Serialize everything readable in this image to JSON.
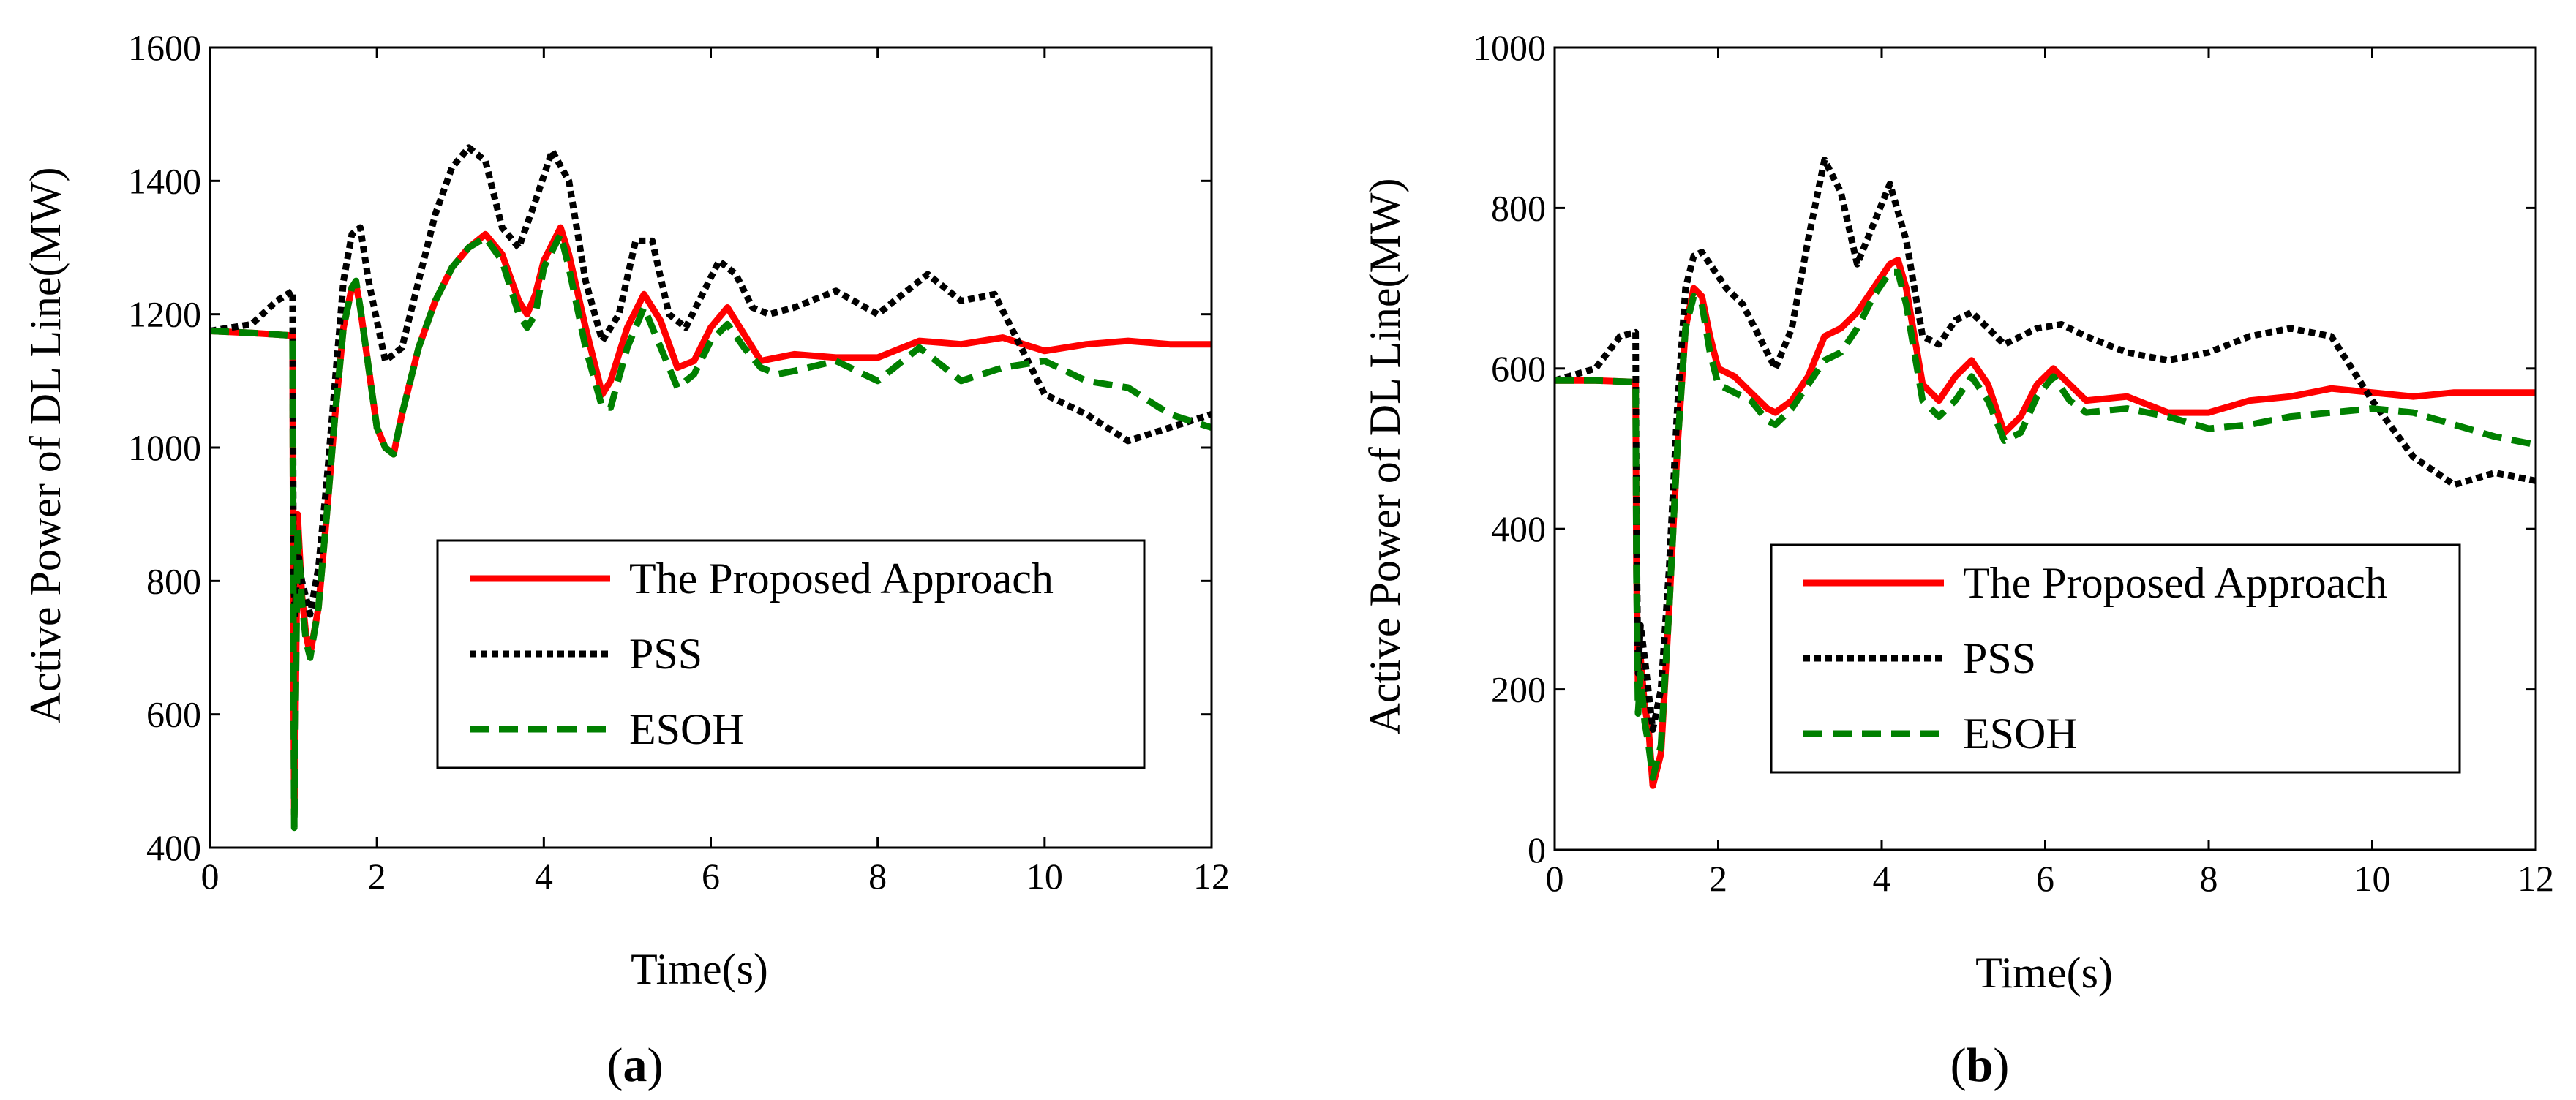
{
  "colors": {
    "proposed": "#ff0000",
    "pss": "#000000",
    "esoh": "#008000",
    "axis": "#000000",
    "background": "#ffffff"
  },
  "chart_data": [
    {
      "type": "line",
      "panel_label": "a",
      "xlabel": "Time(s)",
      "ylabel": "Active Power of DL  Line(MW)",
      "xlim": [
        0,
        12
      ],
      "ylim": [
        400,
        1600
      ],
      "xticks": [
        0,
        2,
        4,
        6,
        8,
        10,
        12
      ],
      "yticks": [
        400,
        600,
        800,
        1000,
        1200,
        1400,
        1600
      ],
      "legend_position": "lower-right",
      "series": [
        {
          "name": "The Proposed Approach",
          "style": "solid",
          "x": [
            0,
            0.5,
            0.99,
            1.0,
            1.01,
            1.02,
            1.05,
            1.1,
            1.15,
            1.2,
            1.3,
            1.4,
            1.5,
            1.6,
            1.7,
            1.75,
            1.8,
            1.9,
            2.0,
            2.1,
            2.2,
            2.3,
            2.5,
            2.7,
            2.9,
            3.1,
            3.3,
            3.5,
            3.7,
            3.8,
            3.9,
            4.0,
            4.2,
            4.3,
            4.5,
            4.7,
            4.8,
            5.0,
            5.2,
            5.4,
            5.6,
            5.8,
            6.0,
            6.2,
            6.4,
            6.6,
            6.8,
            7.0,
            7.5,
            8.0,
            8.5,
            9.0,
            9.5,
            10.0,
            10.5,
            11.0,
            11.5,
            12.0
          ],
          "y": [
            1175,
            1172,
            1168,
            700,
            450,
            560,
            900,
            780,
            720,
            690,
            760,
            900,
            1050,
            1180,
            1240,
            1245,
            1210,
            1120,
            1030,
            1000,
            990,
            1050,
            1150,
            1220,
            1270,
            1300,
            1320,
            1290,
            1220,
            1200,
            1230,
            1280,
            1330,
            1290,
            1180,
            1080,
            1100,
            1180,
            1230,
            1190,
            1120,
            1130,
            1180,
            1210,
            1170,
            1130,
            1135,
            1140,
            1135,
            1135,
            1160,
            1155,
            1165,
            1145,
            1155,
            1160,
            1155,
            1155
          ]
        },
        {
          "name": "PSS",
          "style": "dotted",
          "x": [
            0,
            0.5,
            0.8,
            0.99,
            1.0,
            1.02,
            1.05,
            1.1,
            1.2,
            1.3,
            1.4,
            1.5,
            1.6,
            1.7,
            1.8,
            1.9,
            2.1,
            2.3,
            2.5,
            2.7,
            2.9,
            3.1,
            3.3,
            3.5,
            3.7,
            3.9,
            4.1,
            4.3,
            4.5,
            4.7,
            4.9,
            5.1,
            5.3,
            5.5,
            5.7,
            5.9,
            6.1,
            6.3,
            6.5,
            6.7,
            7.0,
            7.5,
            8.0,
            8.3,
            8.6,
            9.0,
            9.4,
            9.6,
            10.0,
            10.5,
            11.0,
            11.5,
            12.0
          ],
          "y": [
            1175,
            1185,
            1220,
            1235,
            800,
            750,
            850,
            800,
            750,
            820,
            950,
            1100,
            1250,
            1320,
            1330,
            1250,
            1130,
            1150,
            1250,
            1350,
            1420,
            1450,
            1430,
            1330,
            1300,
            1370,
            1445,
            1400,
            1250,
            1160,
            1200,
            1310,
            1310,
            1200,
            1180,
            1230,
            1280,
            1260,
            1210,
            1200,
            1210,
            1235,
            1200,
            1230,
            1260,
            1220,
            1230,
            1180,
            1080,
            1050,
            1010,
            1030,
            1050
          ]
        },
        {
          "name": "ESOH",
          "style": "dashed",
          "x": [
            0,
            0.5,
            0.99,
            1.0,
            1.01,
            1.02,
            1.05,
            1.1,
            1.15,
            1.2,
            1.3,
            1.4,
            1.5,
            1.6,
            1.7,
            1.75,
            1.8,
            1.9,
            2.0,
            2.1,
            2.2,
            2.3,
            2.5,
            2.7,
            2.9,
            3.1,
            3.3,
            3.5,
            3.7,
            3.8,
            3.9,
            4.0,
            4.2,
            4.3,
            4.5,
            4.7,
            4.8,
            5.0,
            5.2,
            5.4,
            5.6,
            5.8,
            6.0,
            6.2,
            6.4,
            6.6,
            6.8,
            7.0,
            7.5,
            8.0,
            8.5,
            9.0,
            9.5,
            10.0,
            10.5,
            11.0,
            11.5,
            12.0
          ],
          "y": [
            1175,
            1172,
            1168,
            700,
            430,
            550,
            880,
            770,
            710,
            685,
            760,
            900,
            1050,
            1180,
            1240,
            1250,
            1210,
            1120,
            1030,
            1000,
            990,
            1050,
            1150,
            1220,
            1270,
            1300,
            1315,
            1280,
            1200,
            1180,
            1200,
            1270,
            1320,
            1270,
            1150,
            1060,
            1060,
            1150,
            1210,
            1150,
            1090,
            1110,
            1160,
            1185,
            1150,
            1120,
            1110,
            1115,
            1130,
            1100,
            1150,
            1100,
            1120,
            1130,
            1100,
            1090,
            1050,
            1030
          ]
        }
      ]
    },
    {
      "type": "line",
      "panel_label": "b",
      "xlabel": "Time(s)",
      "ylabel": "Active Power of DL  Line(MW)",
      "xlim": [
        0,
        12
      ],
      "ylim": [
        0,
        1000
      ],
      "xticks": [
        0,
        2,
        4,
        6,
        8,
        10,
        12
      ],
      "yticks": [
        0,
        200,
        400,
        600,
        800,
        1000
      ],
      "legend_position": "lower-right",
      "series": [
        {
          "name": "The Proposed Approach",
          "style": "solid",
          "x": [
            0,
            0.5,
            0.99,
            1.0,
            1.02,
            1.05,
            1.1,
            1.15,
            1.2,
            1.3,
            1.4,
            1.5,
            1.6,
            1.7,
            1.8,
            1.9,
            2.0,
            2.2,
            2.4,
            2.6,
            2.7,
            2.9,
            3.1,
            3.3,
            3.5,
            3.7,
            3.9,
            4.1,
            4.2,
            4.3,
            4.5,
            4.7,
            4.9,
            5.1,
            5.3,
            5.5,
            5.7,
            5.9,
            6.1,
            6.3,
            6.5,
            7.0,
            7.5,
            8.0,
            8.5,
            9.0,
            9.5,
            10.0,
            10.5,
            11.0,
            11.5,
            12.0
          ],
          "y": [
            585,
            585,
            583,
            350,
            200,
            240,
            180,
            150,
            80,
            120,
            300,
            500,
            650,
            700,
            690,
            640,
            600,
            590,
            570,
            550,
            545,
            560,
            590,
            640,
            650,
            670,
            700,
            730,
            735,
            700,
            580,
            560,
            590,
            610,
            580,
            520,
            540,
            580,
            600,
            580,
            560,
            565,
            545,
            545,
            560,
            565,
            575,
            570,
            565,
            570,
            570,
            570
          ]
        },
        {
          "name": "PSS",
          "style": "dotted",
          "x": [
            0,
            0.5,
            0.8,
            0.99,
            1.0,
            1.02,
            1.05,
            1.1,
            1.2,
            1.3,
            1.4,
            1.5,
            1.6,
            1.7,
            1.8,
            1.9,
            2.1,
            2.3,
            2.5,
            2.7,
            2.9,
            3.1,
            3.3,
            3.5,
            3.7,
            3.9,
            4.1,
            4.3,
            4.5,
            4.7,
            4.9,
            5.1,
            5.3,
            5.5,
            5.7,
            5.9,
            6.2,
            6.5,
            7.0,
            7.5,
            8.0,
            8.5,
            9.0,
            9.5,
            10.0,
            10.5,
            11.0,
            11.5,
            12.0
          ],
          "y": [
            585,
            600,
            640,
            645,
            400,
            220,
            280,
            240,
            150,
            200,
            350,
            550,
            700,
            740,
            745,
            730,
            700,
            680,
            640,
            600,
            650,
            760,
            860,
            820,
            730,
            780,
            830,
            760,
            640,
            630,
            660,
            670,
            650,
            630,
            640,
            650,
            655,
            640,
            620,
            610,
            620,
            640,
            650,
            640,
            560,
            490,
            455,
            470,
            460
          ]
        },
        {
          "name": "ESOH",
          "style": "dashed",
          "x": [
            0,
            0.5,
            0.99,
            1.0,
            1.02,
            1.05,
            1.1,
            1.15,
            1.2,
            1.3,
            1.4,
            1.5,
            1.6,
            1.7,
            1.8,
            1.9,
            2.0,
            2.2,
            2.4,
            2.6,
            2.7,
            2.9,
            3.1,
            3.3,
            3.5,
            3.7,
            3.9,
            4.1,
            4.2,
            4.3,
            4.5,
            4.7,
            4.9,
            5.1,
            5.3,
            5.5,
            5.7,
            5.9,
            6.1,
            6.3,
            6.5,
            7.0,
            7.5,
            8.0,
            8.5,
            9.0,
            9.5,
            10.0,
            10.5,
            11.0,
            11.5,
            12.0
          ],
          "y": [
            585,
            585,
            583,
            340,
            170,
            220,
            160,
            130,
            90,
            130,
            300,
            500,
            650,
            690,
            680,
            620,
            580,
            570,
            560,
            535,
            530,
            550,
            580,
            610,
            620,
            650,
            690,
            720,
            720,
            680,
            560,
            540,
            560,
            590,
            560,
            510,
            520,
            565,
            590,
            560,
            545,
            550,
            540,
            525,
            530,
            540,
            545,
            550,
            545,
            530,
            515,
            505
          ]
        }
      ]
    }
  ]
}
